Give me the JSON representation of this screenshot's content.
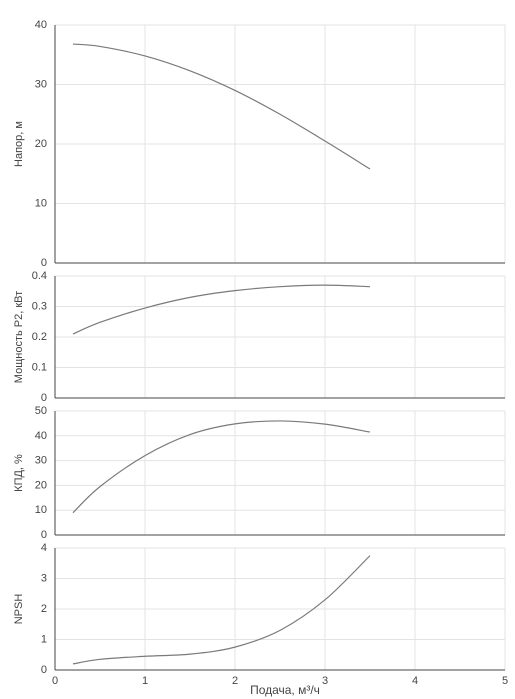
{
  "chart_data": [
    {
      "type": "line",
      "ylabel": "Напор, м",
      "ylim": [
        0,
        40
      ],
      "yticks": [
        0,
        10,
        20,
        30,
        40
      ],
      "xlim": [
        0,
        5
      ],
      "xticks": [
        0,
        1,
        2,
        3,
        4,
        5
      ],
      "grid": true,
      "series": [
        {
          "x": [
            0.2,
            0.5,
            1.0,
            1.5,
            2.0,
            2.5,
            3.0,
            3.5
          ],
          "y": [
            36.8,
            36.4,
            34.8,
            32.3,
            29.0,
            25.0,
            20.5,
            15.8
          ]
        }
      ]
    },
    {
      "type": "line",
      "ylabel": "Мощность P2, кВт",
      "ylim": [
        0,
        0.4
      ],
      "yticks": [
        0,
        0.1,
        0.2,
        0.3,
        0.4
      ],
      "xlim": [
        0,
        5
      ],
      "xticks": [
        0,
        1,
        2,
        3,
        4,
        5
      ],
      "grid": true,
      "series": [
        {
          "x": [
            0.2,
            0.5,
            1.0,
            1.5,
            2.0,
            2.5,
            3.0,
            3.5
          ],
          "y": [
            0.21,
            0.248,
            0.295,
            0.33,
            0.352,
            0.365,
            0.37,
            0.365
          ]
        }
      ]
    },
    {
      "type": "line",
      "ylabel": "КПД, %",
      "ylim": [
        0,
        50
      ],
      "yticks": [
        0,
        10,
        20,
        30,
        40,
        50
      ],
      "xlim": [
        0,
        5
      ],
      "xticks": [
        0,
        1,
        2,
        3,
        4,
        5
      ],
      "grid": true,
      "series": [
        {
          "x": [
            0.2,
            0.5,
            1.0,
            1.5,
            2.0,
            2.5,
            3.0,
            3.5
          ],
          "y": [
            9,
            19.5,
            32,
            40.5,
            44.8,
            46,
            44.7,
            41.5
          ]
        }
      ]
    },
    {
      "type": "line",
      "ylabel": "NPSH",
      "xlabel": "Подача, м³/ч",
      "ylim": [
        0,
        4
      ],
      "yticks": [
        0,
        1,
        2,
        3,
        4
      ],
      "xlim": [
        0,
        5
      ],
      "xticks": [
        0,
        1,
        2,
        3,
        4,
        5
      ],
      "grid": true,
      "series": [
        {
          "x": [
            0.2,
            0.5,
            1.0,
            1.5,
            2.0,
            2.5,
            3.0,
            3.5
          ],
          "y": [
            0.2,
            0.35,
            0.45,
            0.52,
            0.75,
            1.3,
            2.3,
            3.75
          ]
        }
      ]
    }
  ],
  "colors": {
    "line": "#7a7a7a",
    "grid": "#e3e3e3",
    "axis": "#444444",
    "text": "#444444"
  }
}
